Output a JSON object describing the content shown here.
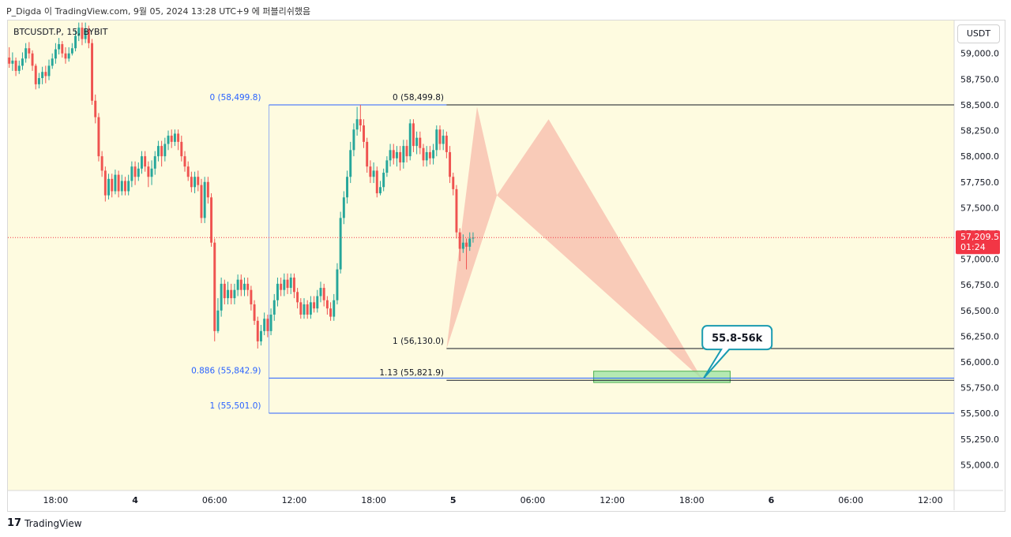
{
  "caption": "P_Digda 이 TradingView.com, 9월 05, 2024 13:28 UTC+9 에 퍼블리쉬했음",
  "symbol_label": "BTCUSDT.P, 15, BYBIT",
  "currency_button": "USDT",
  "footer_brand": "TradingView",
  "colors": {
    "up": "#26a69a",
    "down": "#ef5350",
    "pattern_fill": "#f7b7a6",
    "target_zone_fill": "#9be3a3",
    "fib_line_blue": "#2962ff",
    "fib_line_black": "#131722",
    "price_badge": "#f23645",
    "callout_border": "#1a9bb0"
  },
  "chart_data": {
    "type": "candlestick",
    "y_axis_labels": [
      "59,000.0",
      "58,750.0",
      "58,500.0",
      "58,250.0",
      "58,000.0",
      "57,750.0",
      "57,500.0",
      "57,250.0",
      "57,000.0",
      "56,750.0",
      "56,500.0",
      "56,250.0",
      "56,000.0",
      "55,750.0",
      "55,500.0",
      "55,250.0",
      "55,000.0"
    ],
    "y_axis_values": [
      59000,
      58750,
      58500,
      58250,
      58000,
      57750,
      57500,
      57250,
      57000,
      56750,
      56500,
      56250,
      56000,
      55750,
      55500,
      55250,
      55000
    ],
    "ylim": [
      54750,
      59320
    ],
    "x_axis_labels": [
      "18:00",
      "4",
      "06:00",
      "12:00",
      "18:00",
      "5",
      "06:00",
      "12:00",
      "18:00",
      "6",
      "06:00",
      "12:00"
    ],
    "x_axis_bold": [
      false,
      true,
      false,
      false,
      false,
      true,
      false,
      false,
      false,
      true,
      false,
      false
    ],
    "x_axis_hours": [
      -6,
      0,
      6,
      12,
      18,
      24,
      30,
      36,
      42,
      48,
      54,
      60
    ],
    "xlim_hours": [
      -9.6,
      61.8
    ],
    "current_price": {
      "value": 57209.5,
      "label": "57,209.5",
      "countdown": "01:24"
    },
    "fib_levels": [
      {
        "label": "0 (58,499.8)",
        "value": 58499.8,
        "start_hour": 10.1,
        "label_side": "left",
        "label_hour": 9.5,
        "color": "blue"
      },
      {
        "label": "0.886 (55,842.9)",
        "value": 55842.9,
        "start_hour": 10.1,
        "label_side": "left",
        "label_hour": 9.5,
        "color": "blue"
      },
      {
        "label": "1 (55,501.0)",
        "value": 55501.0,
        "start_hour": 10.1,
        "label_side": "left",
        "label_hour": 9.5,
        "color": "blue"
      },
      {
        "label": "0 (58,499.8)",
        "value": 58499.8,
        "start_hour": 23.5,
        "label_side": "left",
        "label_hour": 23.3,
        "color": "black"
      },
      {
        "label": "1 (56,130.0)",
        "value": 56130.0,
        "start_hour": 23.5,
        "label_side": "left",
        "label_hour": 23.3,
        "color": "black"
      },
      {
        "label": "1.13 (55,821.9)",
        "value": 55821.9,
        "start_hour": 23.5,
        "label_side": "left",
        "label_hour": 23.3,
        "color": "black"
      }
    ],
    "harmonic_pattern": {
      "points": [
        {
          "hour": 23.5,
          "price": 56130
        },
        {
          "hour": 25.8,
          "price": 58480
        },
        {
          "hour": 27.3,
          "price": 57620
        },
        {
          "hour": 31.2,
          "price": 58360
        },
        {
          "hour": 42.8,
          "price": 55830
        }
      ]
    },
    "target_zone": {
      "hour_start": 34.6,
      "hour_end": 44.9,
      "price_low": 55800,
      "price_high": 55910
    },
    "callout": {
      "text": "55.8-56k",
      "anchor_hour": 42.8,
      "anchor_price": 55830
    },
    "candles_step_hours": 0.25,
    "candles_start_hour": -9.5,
    "candles": [
      [
        58960,
        58900,
        59060,
        58860
      ],
      [
        58900,
        58930,
        59010,
        58830
      ],
      [
        58930,
        58830,
        58960,
        58780
      ],
      [
        58830,
        58880,
        58930,
        58800
      ],
      [
        58880,
        58950,
        59010,
        58840
      ],
      [
        58950,
        59050,
        59100,
        58910
      ],
      [
        59050,
        59000,
        59110,
        58950
      ],
      [
        59000,
        58880,
        59030,
        58830
      ],
      [
        58880,
        58700,
        58900,
        58650
      ],
      [
        58700,
        58760,
        58810,
        58660
      ],
      [
        58760,
        58820,
        58870,
        58700
      ],
      [
        58820,
        58780,
        58880,
        58710
      ],
      [
        58780,
        58880,
        58940,
        58740
      ],
      [
        58880,
        58950,
        59000,
        58850
      ],
      [
        58950,
        59040,
        59100,
        58900
      ],
      [
        59040,
        59090,
        59150,
        58990
      ],
      [
        59090,
        59000,
        59120,
        58960
      ],
      [
        59000,
        58950,
        59060,
        58900
      ],
      [
        58950,
        59000,
        59060,
        58920
      ],
      [
        59000,
        59050,
        59100,
        58980
      ],
      [
        59050,
        59170,
        59230,
        59020
      ],
      [
        59170,
        59250,
        59300,
        59120
      ],
      [
        59250,
        59140,
        59300,
        59080
      ],
      [
        59140,
        59230,
        59300,
        59100
      ],
      [
        59230,
        59100,
        59270,
        59050
      ],
      [
        59100,
        58540,
        59140,
        58500
      ],
      [
        58540,
        58380,
        58600,
        58320
      ],
      [
        58380,
        58000,
        58420,
        57950
      ],
      [
        58000,
        57860,
        58050,
        57800
      ],
      [
        57860,
        57620,
        57900,
        57560
      ],
      [
        57620,
        57780,
        57830,
        57580
      ],
      [
        57780,
        57660,
        57830,
        57600
      ],
      [
        57660,
        57820,
        57870,
        57630
      ],
      [
        57820,
        57660,
        57860,
        57600
      ],
      [
        57660,
        57760,
        57820,
        57620
      ],
      [
        57760,
        57660,
        57800,
        57620
      ],
      [
        57660,
        57760,
        57820,
        57620
      ],
      [
        57760,
        57900,
        57950,
        57700
      ],
      [
        57900,
        57800,
        57950,
        57720
      ],
      [
        57800,
        57880,
        57940,
        57760
      ],
      [
        57880,
        58000,
        58050,
        57830
      ],
      [
        58000,
        57900,
        58050,
        57850
      ],
      [
        57900,
        57800,
        57950,
        57700
      ],
      [
        57800,
        57880,
        57960,
        57720
      ],
      [
        57880,
        58000,
        58050,
        57820
      ],
      [
        58000,
        58100,
        58150,
        57950
      ],
      [
        58100,
        58000,
        58150,
        57900
      ],
      [
        58000,
        58120,
        58180,
        57950
      ],
      [
        58120,
        58200,
        58250,
        58060
      ],
      [
        58200,
        58140,
        58260,
        58080
      ],
      [
        58140,
        58220,
        58260,
        58100
      ],
      [
        58220,
        58140,
        58260,
        58060
      ],
      [
        58140,
        58000,
        58200,
        57950
      ],
      [
        58000,
        57900,
        58050,
        57850
      ],
      [
        57900,
        57800,
        57950,
        57760
      ],
      [
        57800,
        57700,
        57850,
        57650
      ],
      [
        57700,
        57800,
        57850,
        57640
      ],
      [
        57800,
        57720,
        57860,
        57660
      ],
      [
        57720,
        57400,
        57780,
        57350
      ],
      [
        57400,
        57750,
        57800,
        57350
      ],
      [
        57750,
        57600,
        57800,
        57540
      ],
      [
        57600,
        57160,
        57640,
        57120
      ],
      [
        57160,
        56300,
        57200,
        56200
      ],
      [
        56300,
        56500,
        56620,
        56280
      ],
      [
        56500,
        56760,
        56820,
        56440
      ],
      [
        56760,
        56620,
        56800,
        56560
      ],
      [
        56620,
        56700,
        56780,
        56560
      ],
      [
        56700,
        56620,
        56760,
        56560
      ],
      [
        56620,
        56700,
        56760,
        56560
      ],
      [
        56700,
        56800,
        56850,
        56640
      ],
      [
        56800,
        56700,
        56850,
        56640
      ],
      [
        56700,
        56760,
        56820,
        56640
      ],
      [
        56760,
        56700,
        56820,
        56640
      ],
      [
        56700,
        56560,
        56740,
        56500
      ],
      [
        56560,
        56400,
        56600,
        56360
      ],
      [
        56400,
        56200,
        56440,
        56130
      ],
      [
        56200,
        56300,
        56360,
        56160
      ],
      [
        56300,
        56420,
        56480,
        56260
      ],
      [
        56420,
        56300,
        56460,
        56240
      ],
      [
        56300,
        56460,
        56520,
        56260
      ],
      [
        56460,
        56600,
        56660,
        56400
      ],
      [
        56600,
        56760,
        56820,
        56540
      ],
      [
        56760,
        56700,
        56820,
        56640
      ],
      [
        56700,
        56800,
        56860,
        56640
      ],
      [
        56800,
        56720,
        56860,
        56660
      ],
      [
        56720,
        56820,
        56860,
        56660
      ],
      [
        56820,
        56680,
        56860,
        56620
      ],
      [
        56680,
        56580,
        56720,
        56520
      ],
      [
        56580,
        56460,
        56620,
        56420
      ],
      [
        56460,
        56560,
        56620,
        56420
      ],
      [
        56560,
        56460,
        56600,
        56420
      ],
      [
        56460,
        56580,
        56640,
        56420
      ],
      [
        56580,
        56520,
        56640,
        56480
      ],
      [
        56520,
        56640,
        56700,
        56480
      ],
      [
        56640,
        56720,
        56780,
        56580
      ],
      [
        56720,
        56600,
        56760,
        56540
      ],
      [
        56600,
        56520,
        56640,
        56460
      ],
      [
        56520,
        56440,
        56580,
        56400
      ],
      [
        56440,
        56600,
        56660,
        56400
      ],
      [
        56600,
        56900,
        56960,
        56560
      ],
      [
        56900,
        57400,
        57460,
        56860
      ],
      [
        57400,
        57600,
        57660,
        57340
      ],
      [
        57600,
        57800,
        57860,
        57540
      ],
      [
        57800,
        58060,
        58140,
        57740
      ],
      [
        58060,
        58260,
        58320,
        58000
      ],
      [
        58260,
        58360,
        58480,
        58200
      ],
      [
        58360,
        58300,
        58500,
        58240
      ],
      [
        58300,
        58140,
        58360,
        58080
      ],
      [
        58140,
        57900,
        58180,
        57840
      ],
      [
        57900,
        57800,
        57960,
        57740
      ],
      [
        57800,
        57860,
        57940,
        57740
      ],
      [
        57860,
        57640,
        57900,
        57600
      ],
      [
        57640,
        57700,
        57760,
        57620
      ],
      [
        57700,
        57840,
        57880,
        57660
      ],
      [
        57840,
        57960,
        58000,
        57800
      ],
      [
        57960,
        58060,
        58120,
        57900
      ],
      [
        58060,
        57980,
        58120,
        57920
      ],
      [
        57980,
        58040,
        58100,
        57900
      ],
      [
        58040,
        57940,
        58100,
        57860
      ],
      [
        57940,
        58100,
        58160,
        57880
      ],
      [
        58100,
        58000,
        58160,
        57940
      ],
      [
        58000,
        58320,
        58360,
        57960
      ],
      [
        58320,
        58100,
        58360,
        58040
      ],
      [
        58100,
        58180,
        58240,
        58020
      ],
      [
        58180,
        58080,
        58240,
        58020
      ],
      [
        58080,
        57960,
        58120,
        57900
      ],
      [
        57960,
        58040,
        58100,
        57900
      ],
      [
        58040,
        57980,
        58100,
        57920
      ],
      [
        57980,
        58060,
        58120,
        57920
      ],
      [
        58060,
        58260,
        58300,
        58000
      ],
      [
        58260,
        58120,
        58300,
        58060
      ],
      [
        58120,
        58200,
        58260,
        58060
      ],
      [
        58200,
        58040,
        58240,
        57980
      ],
      [
        58040,
        57800,
        58100,
        57740
      ],
      [
        57800,
        57680,
        57840,
        57620
      ],
      [
        57680,
        57260,
        57720,
        57200
      ],
      [
        57260,
        57100,
        57300,
        56980
      ],
      [
        57100,
        57160,
        57240,
        57060
      ],
      [
        57160,
        57120,
        57200,
        56900
      ],
      [
        57120,
        57200,
        57260,
        57080
      ],
      [
        57200,
        57209,
        57260,
        57160
      ]
    ]
  }
}
